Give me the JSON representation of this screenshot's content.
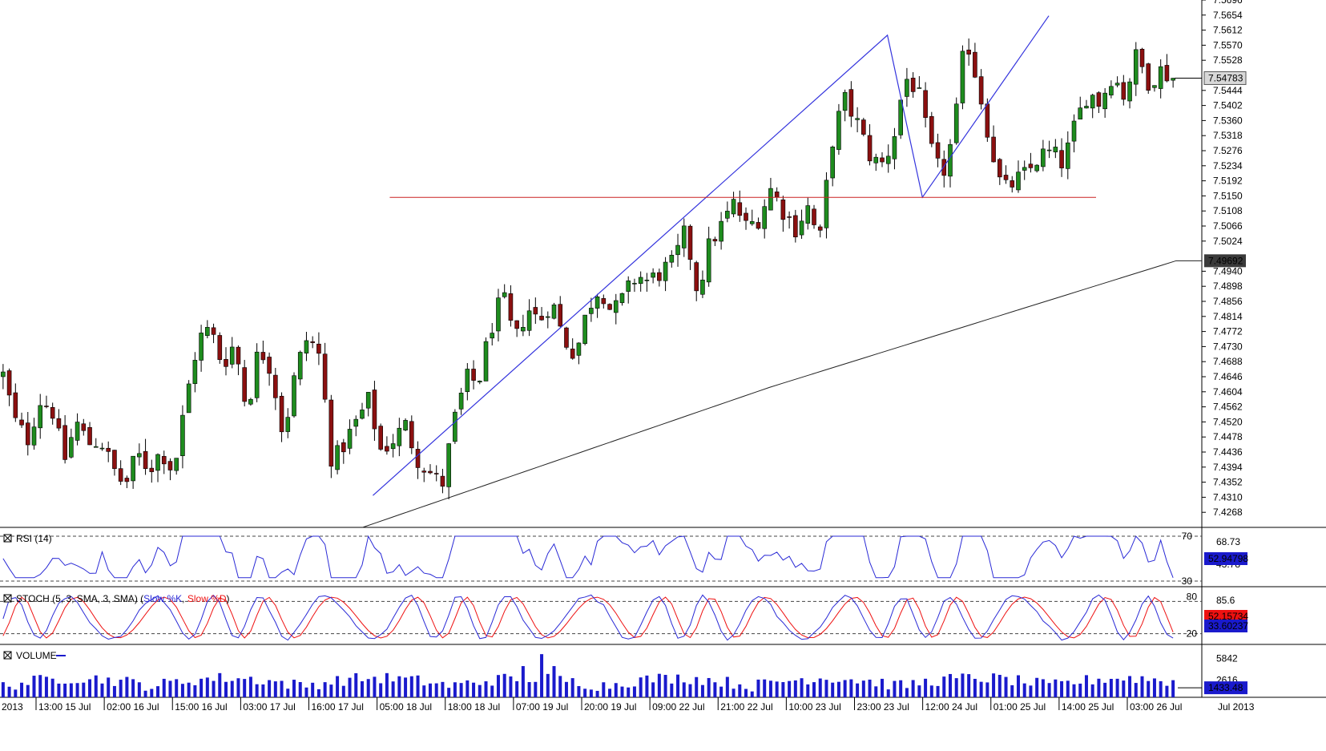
{
  "colors": {
    "background": "#ffffff",
    "bull": "#1e8c1e",
    "bear": "#8b1010",
    "wick": "#000000",
    "trendline": "#3333dd",
    "support": "#cc2222",
    "ma": "#222222",
    "rsi": "#2a2ad6",
    "stoch_k": "#2a2ad6",
    "stoch_d": "#ee1111",
    "volume": "#1a1acc",
    "price_badge": "#6e6e6e",
    "ma_badge": "#3a3a3a",
    "k_badge": "#1a1acc",
    "d_badge": "#ee1111"
  },
  "chart_data": {
    "type": "candlestick",
    "price_axis": {
      "min": 7.4226,
      "max": 7.5696,
      "ticks": [
        "7.5696",
        "7.5654",
        "7.5612",
        "7.5570",
        "7.5528",
        "7.5444",
        "7.5402",
        "7.5360",
        "7.5318",
        "7.5276",
        "7.5234",
        "7.5192",
        "7.5150",
        "7.5108",
        "7.5066",
        "7.5024",
        "7.4940",
        "7.4898",
        "7.4856",
        "7.4814",
        "7.4772",
        "7.4730",
        "7.4688",
        "7.4646",
        "7.4604",
        "7.4562",
        "7.4520",
        "7.4478",
        "7.4436",
        "7.4394",
        "7.4352",
        "7.4310",
        "7.4268"
      ],
      "last_price": "7.54783",
      "ma_value": "7.49692"
    },
    "time_axis": [
      "2013",
      "13:00 15 Jul",
      "02:00 16 Jul",
      "15:00 16 Jul",
      "03:00 17 Jul",
      "16:00 17 Jul",
      "05:00 18 Jul",
      "18:00 18 Jul",
      "07:00 19 Jul",
      "20:00 19 Jul",
      "09:00 22 Jul",
      "21:00 22 Jul",
      "10:00 23 Jul",
      "23:00 23 Jul",
      "12:00 24 Jul",
      "01:00 25 Jul",
      "14:00 25 Jul",
      "03:00 26 Jul",
      "Jul 2013"
    ],
    "close_path": [
      7.465,
      7.452,
      7.447,
      7.458,
      7.456,
      7.441,
      7.452,
      7.446,
      7.447,
      7.439,
      7.434,
      7.443,
      7.439,
      7.444,
      7.438,
      7.458,
      7.475,
      7.478,
      7.468,
      7.474,
      7.455,
      7.473,
      7.467,
      7.448,
      7.466,
      7.476,
      7.47,
      7.44,
      7.446,
      7.452,
      7.458,
      7.444,
      7.447,
      7.451,
      7.442,
      7.438,
      7.434,
      7.452,
      7.464,
      7.463,
      7.478,
      7.487,
      7.474,
      7.484,
      7.48,
      7.486,
      7.475,
      7.471,
      7.484,
      7.49,
      7.482,
      7.487,
      7.493,
      7.491,
      7.494,
      7.496,
      7.505,
      7.488,
      7.502,
      7.507,
      7.513,
      7.506,
      7.509,
      7.517,
      7.511,
      7.506,
      7.512,
      7.502,
      7.53,
      7.542,
      7.536,
      7.527,
      7.523,
      7.53,
      7.548,
      7.545,
      7.529,
      7.52,
      7.532,
      7.56,
      7.546,
      7.53,
      7.516,
      7.519,
      7.521,
      7.526,
      7.527,
      7.524,
      7.535,
      7.544,
      7.541,
      7.549,
      7.543,
      7.554,
      7.547,
      7.55,
      7.548
    ],
    "ma_line": {
      "start": 7.4226,
      "end": 7.49692
    },
    "support_level": 7.5146,
    "trend_points": [
      {
        "t": 0.3103,
        "p": 7.4315
      },
      {
        "t": 0.7384,
        "p": 7.5598
      },
      {
        "t": 0.7675,
        "p": 7.5146
      },
      {
        "t": 0.8727,
        "p": 7.5652
      }
    ],
    "indicators": {
      "rsi": {
        "title": "RSI (14)",
        "levels": [
          "70",
          "30"
        ],
        "upper_value": "68.73",
        "current": "52.94798",
        "side_label": "43.78"
      },
      "stoch": {
        "title": "STOCH (5, 3, SMA, 3, SMA)",
        "k_label": "Slow %K",
        "d_label": "Slow %D",
        "levels": [
          "80",
          "20"
        ],
        "upper_value": "85.6",
        "k_value": "52.15734",
        "d_value": "33.60237"
      },
      "volume": {
        "title": "VOLUME",
        "ticks": [
          "5842",
          "2616"
        ],
        "current": "1433.48"
      }
    }
  }
}
